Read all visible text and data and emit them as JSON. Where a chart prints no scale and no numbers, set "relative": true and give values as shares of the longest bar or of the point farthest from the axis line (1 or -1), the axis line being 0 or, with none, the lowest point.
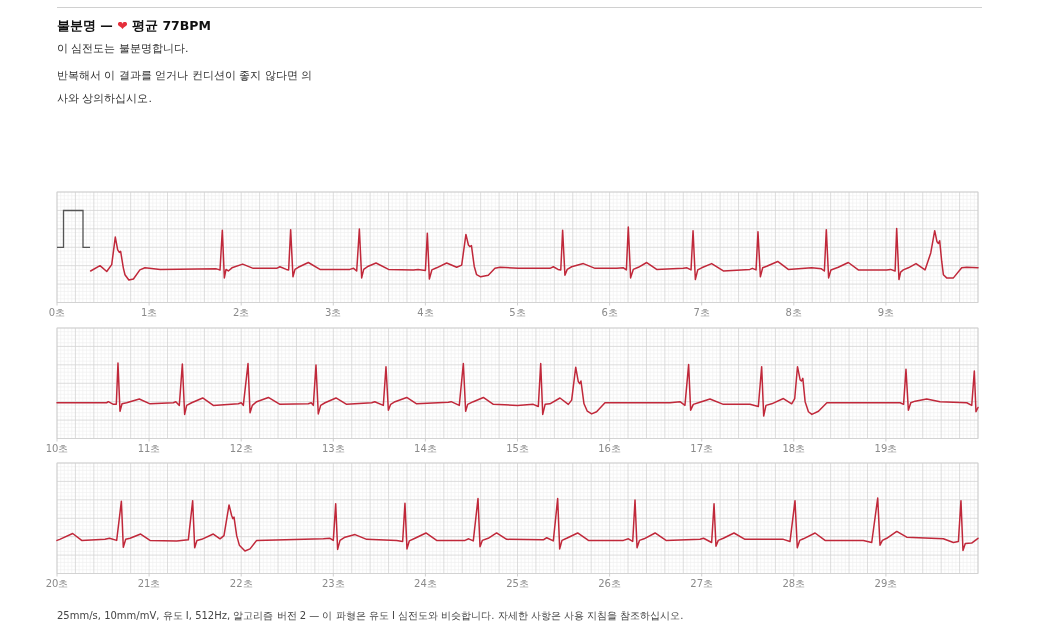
{
  "chart_data": [
    {
      "type": "line",
      "title": "불분명 — ❤ 평균 77BPM",
      "subtitle": "이 심전도는 불분명합니다.",
      "annotations": [
        "반복해서 이 결과를 얻거나 컨디션이 좋지 않다면 의사와 상의하십시오."
      ],
      "x": [
        0.365,
        0.467,
        0.54,
        0.594,
        0.633,
        0.659,
        0.677,
        0.691,
        0.72,
        0.738,
        0.78,
        0.83,
        0.9,
        0.955,
        1.12,
        1.73,
        1.75,
        1.77,
        1.795,
        1.817,
        1.835,
        1.86,
        1.9,
        2.016,
        2.13,
        2.385,
        2.42,
        2.49,
        2.515,
        2.537,
        2.562,
        2.584,
        2.62,
        2.729,
        2.855,
        3.18,
        3.22,
        3.254,
        3.283,
        3.308,
        3.33,
        3.38,
        3.464,
        3.6,
        3.87,
        3.92,
        4.0,
        4.021,
        4.043,
        4.07,
        4.122,
        4.231,
        4.34,
        4.394,
        4.44,
        4.467,
        4.482,
        4.5,
        4.53,
        4.556,
        4.6,
        4.683,
        4.755,
        4.81,
        5.009,
        5.353,
        5.389,
        5.44,
        5.47,
        5.49,
        5.515,
        5.54,
        5.588,
        5.715,
        5.842,
        6.077,
        6.15,
        6.182,
        6.203,
        6.228,
        6.257,
        6.312,
        6.403,
        6.511,
        6.8,
        6.84,
        6.884,
        6.906,
        6.931,
        6.957,
        7.0,
        7.108,
        7.235,
        7.524,
        7.55,
        7.59,
        7.611,
        7.637,
        7.662,
        7.706,
        7.825,
        7.94,
        8.194,
        8.3,
        8.332,
        8.353,
        8.378,
        8.403,
        8.483,
        8.592,
        8.7,
        9.008,
        9.05,
        9.1,
        9.117,
        9.142,
        9.16,
        9.189,
        9.244,
        9.327,
        9.425,
        9.487,
        9.53,
        9.555,
        9.57,
        9.584,
        9.606,
        9.624,
        9.66,
        9.733,
        9.823,
        9.877,
        10.0
      ],
      "values": [
        0.17,
        0.27,
        0.16,
        0.29,
        0.81,
        0.57,
        0.52,
        0.54,
        0.23,
        0.1,
        0.0,
        0.02,
        0.19,
        0.23,
        0.2,
        0.21,
        0.2,
        0.19,
        0.94,
        0.04,
        0.2,
        0.17,
        0.23,
        0.3,
        0.22,
        0.22,
        0.25,
        0.2,
        0.19,
        0.95,
        0.06,
        0.2,
        0.24,
        0.33,
        0.2,
        0.2,
        0.22,
        0.17,
        0.96,
        0.04,
        0.2,
        0.26,
        0.32,
        0.2,
        0.19,
        0.2,
        0.18,
        0.88,
        0.02,
        0.19,
        0.23,
        0.32,
        0.24,
        0.28,
        0.86,
        0.66,
        0.63,
        0.65,
        0.26,
        0.1,
        0.06,
        0.09,
        0.22,
        0.24,
        0.22,
        0.22,
        0.25,
        0.2,
        0.19,
        0.94,
        0.09,
        0.2,
        0.25,
        0.31,
        0.22,
        0.22,
        0.23,
        0.19,
        1.0,
        0.04,
        0.2,
        0.24,
        0.33,
        0.2,
        0.22,
        0.23,
        0.19,
        0.93,
        0.01,
        0.19,
        0.23,
        0.31,
        0.17,
        0.2,
        0.22,
        0.19,
        0.91,
        0.06,
        0.23,
        0.26,
        0.35,
        0.2,
        0.23,
        0.21,
        0.17,
        0.95,
        0.04,
        0.19,
        0.24,
        0.33,
        0.19,
        0.19,
        0.2,
        0.17,
        0.97,
        0.01,
        0.15,
        0.19,
        0.23,
        0.31,
        0.19,
        0.51,
        0.93,
        0.72,
        0.69,
        0.74,
        0.35,
        0.1,
        0.04,
        0.04,
        0.23,
        0.24,
        0.23
      ],
      "color": "#c0283a",
      "relative": true,
      "xlim": [
        0,
        10
      ],
      "xticks": [
        {
          "value": 0,
          "label": "0초"
        },
        {
          "value": 1,
          "label": "1초"
        },
        {
          "value": 2,
          "label": "2초"
        },
        {
          "value": 3,
          "label": "3초"
        },
        {
          "value": 4,
          "label": "4초"
        },
        {
          "value": 5,
          "label": "5초"
        },
        {
          "value": 6,
          "label": "6초"
        },
        {
          "value": 7,
          "label": "7초"
        },
        {
          "value": 8,
          "label": "8초"
        },
        {
          "value": 9,
          "label": "9초"
        }
      ],
      "grid": true
    },
    {
      "type": "line",
      "x": [
        10.0,
        10.539,
        10.557,
        10.612,
        10.644,
        10.662,
        10.684,
        10.706,
        10.756,
        10.894,
        11.01,
        11.263,
        11.29,
        11.328,
        11.361,
        11.386,
        11.408,
        11.462,
        11.582,
        11.697,
        11.969,
        12.0,
        12.023,
        12.074,
        12.096,
        12.121,
        12.168,
        12.295,
        12.421,
        12.729,
        12.76,
        12.783,
        12.812,
        12.837,
        12.863,
        12.91,
        13.029,
        13.145,
        13.417,
        13.45,
        13.543,
        13.572,
        13.598,
        13.623,
        13.67,
        13.797,
        13.905,
        14.249,
        14.28,
        14.368,
        14.412,
        14.437,
        14.459,
        14.52,
        14.629,
        14.738,
        15.0,
        15.171,
        15.226,
        15.252,
        15.274,
        15.3,
        15.352,
        15.461,
        15.552,
        15.588,
        15.632,
        15.66,
        15.675,
        15.689,
        15.722,
        15.758,
        15.805,
        15.859,
        15.95,
        16.656,
        16.764,
        16.818,
        16.858,
        16.88,
        16.909,
        16.963,
        17.09,
        17.235,
        17.524,
        17.615,
        17.651,
        17.673,
        17.698,
        17.76,
        17.887,
        17.977,
        18.01,
        18.04,
        18.069,
        18.083,
        18.098,
        18.123,
        18.159,
        18.196,
        18.268,
        18.359,
        19.155,
        19.192,
        19.218,
        19.244,
        19.27,
        19.317,
        19.443,
        19.588,
        19.878,
        19.932,
        19.96,
        19.978,
        20.0
      ],
      "values": [
        0.25,
        0.25,
        0.27,
        0.22,
        0.22,
        1.0,
        0.09,
        0.23,
        0.25,
        0.32,
        0.23,
        0.25,
        0.27,
        0.2,
        0.98,
        0.03,
        0.2,
        0.25,
        0.34,
        0.2,
        0.23,
        0.25,
        0.2,
        0.99,
        0.06,
        0.2,
        0.27,
        0.35,
        0.22,
        0.23,
        0.25,
        0.2,
        0.96,
        0.04,
        0.2,
        0.25,
        0.34,
        0.22,
        0.25,
        0.27,
        0.2,
        0.93,
        0.11,
        0.22,
        0.27,
        0.35,
        0.23,
        0.26,
        0.27,
        0.2,
        0.99,
        0.09,
        0.22,
        0.27,
        0.35,
        0.22,
        0.2,
        0.22,
        0.18,
        0.99,
        0.03,
        0.22,
        0.23,
        0.34,
        0.22,
        0.3,
        0.92,
        0.65,
        0.61,
        0.66,
        0.23,
        0.09,
        0.04,
        0.08,
        0.25,
        0.25,
        0.27,
        0.2,
        0.97,
        0.11,
        0.22,
        0.25,
        0.32,
        0.22,
        0.22,
        0.18,
        0.93,
        0.0,
        0.2,
        0.23,
        0.33,
        0.23,
        0.33,
        0.93,
        0.68,
        0.66,
        0.71,
        0.27,
        0.08,
        0.03,
        0.09,
        0.25,
        0.25,
        0.22,
        0.88,
        0.11,
        0.25,
        0.28,
        0.32,
        0.27,
        0.25,
        0.2,
        0.85,
        0.08,
        0.16
      ],
      "color": "#c0283a",
      "relative": true,
      "xlim": [
        10,
        20
      ],
      "xticks": [
        {
          "value": 10,
          "label": "10초"
        },
        {
          "value": 11,
          "label": "11초"
        },
        {
          "value": 12,
          "label": "12초"
        },
        {
          "value": 13,
          "label": "13초"
        },
        {
          "value": 14,
          "label": "14초"
        },
        {
          "value": 15,
          "label": "15초"
        },
        {
          "value": 16,
          "label": "16초"
        },
        {
          "value": 17,
          "label": "17초"
        },
        {
          "value": 18,
          "label": "18초"
        },
        {
          "value": 19,
          "label": "19초"
        }
      ],
      "grid": true
    },
    {
      "type": "line",
      "annotations": [
        "25mm/s, 10mm/mV, 유도 I, 512Hz, 알고리즘 버전 2 — 이 파형은 유도 I 심전도와 비슷합니다. 자세한 사항은 사용 지침을 참조하십시오."
      ],
      "x": [
        20.0,
        20.03,
        20.17,
        20.268,
        20.521,
        20.57,
        20.648,
        20.699,
        20.72,
        20.746,
        20.793,
        20.908,
        21.01,
        21.3,
        21.426,
        21.473,
        21.495,
        21.52,
        21.571,
        21.697,
        21.77,
        21.813,
        21.868,
        21.896,
        21.91,
        21.922,
        21.951,
        21.98,
        22.041,
        22.096,
        22.168,
        22.892,
        22.964,
        23.0,
        23.026,
        23.047,
        23.073,
        23.127,
        23.236,
        23.362,
        23.688,
        23.753,
        23.778,
        23.8,
        23.825,
        23.887,
        24.006,
        24.122,
        24.43,
        24.47,
        24.52,
        24.571,
        24.593,
        24.618,
        24.682,
        24.773,
        24.882,
        25.28,
        25.317,
        25.389,
        25.436,
        25.458,
        25.483,
        25.534,
        25.653,
        25.77,
        26.15,
        26.204,
        26.251,
        26.276,
        26.298,
        26.324,
        26.374,
        26.494,
        26.613,
        26.982,
        27.02,
        27.108,
        27.134,
        27.155,
        27.18,
        27.235,
        27.351,
        27.47,
        27.887,
        27.959,
        28.013,
        28.038,
        28.064,
        28.104,
        28.231,
        28.339,
        28.755,
        28.846,
        28.911,
        28.936,
        28.962,
        29.009,
        29.118,
        29.226,
        29.624,
        29.733,
        29.787,
        29.815,
        29.837,
        29.862,
        29.931,
        30.0
      ],
      "values": [
        0.2,
        0.22,
        0.33,
        0.2,
        0.22,
        0.24,
        0.2,
        0.94,
        0.07,
        0.22,
        0.24,
        0.32,
        0.2,
        0.19,
        0.21,
        0.95,
        0.06,
        0.2,
        0.22,
        0.32,
        0.23,
        0.29,
        0.87,
        0.67,
        0.61,
        0.64,
        0.29,
        0.11,
        0.0,
        0.04,
        0.2,
        0.23,
        0.24,
        0.2,
        0.89,
        0.03,
        0.2,
        0.26,
        0.31,
        0.22,
        0.2,
        0.18,
        0.9,
        0.04,
        0.19,
        0.24,
        0.34,
        0.2,
        0.2,
        0.23,
        0.19,
        0.99,
        0.08,
        0.2,
        0.24,
        0.34,
        0.22,
        0.21,
        0.25,
        0.19,
        0.99,
        0.04,
        0.2,
        0.24,
        0.34,
        0.2,
        0.2,
        0.23,
        0.18,
        0.96,
        0.06,
        0.2,
        0.23,
        0.34,
        0.2,
        0.22,
        0.24,
        0.16,
        0.89,
        0.09,
        0.2,
        0.24,
        0.34,
        0.22,
        0.22,
        0.18,
        0.95,
        0.06,
        0.2,
        0.23,
        0.34,
        0.2,
        0.2,
        0.16,
        1.0,
        0.11,
        0.2,
        0.24,
        0.37,
        0.26,
        0.23,
        0.16,
        0.18,
        0.95,
        0.01,
        0.14,
        0.15,
        0.24
      ],
      "color": "#c0283a",
      "relative": true,
      "xlim": [
        20,
        30
      ],
      "xticks": [
        {
          "value": 20,
          "label": "20초"
        },
        {
          "value": 21,
          "label": "21초"
        },
        {
          "value": 22,
          "label": "22초"
        },
        {
          "value": 23,
          "label": "23초"
        },
        {
          "value": 24,
          "label": "24초"
        },
        {
          "value": 25,
          "label": "25초"
        },
        {
          "value": 26,
          "label": "26초"
        },
        {
          "value": 27,
          "label": "27초"
        },
        {
          "value": 28,
          "label": "28초"
        },
        {
          "value": 29,
          "label": "29초"
        }
      ],
      "grid": true
    }
  ]
}
